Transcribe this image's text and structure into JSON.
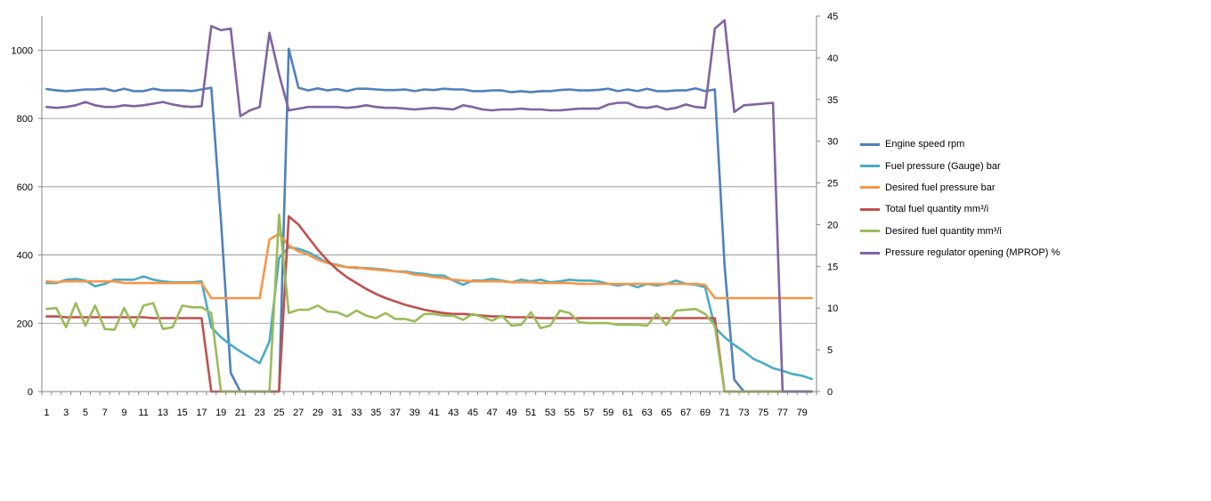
{
  "chart_data": {
    "type": "line",
    "title": "",
    "xlabel": "",
    "ylabel": "",
    "x": [
      1,
      2,
      3,
      4,
      5,
      6,
      7,
      8,
      9,
      10,
      11,
      12,
      13,
      14,
      15,
      16,
      17,
      18,
      19,
      20,
      21,
      22,
      23,
      24,
      25,
      26,
      27,
      28,
      29,
      30,
      31,
      32,
      33,
      34,
      35,
      36,
      37,
      38,
      39,
      40,
      41,
      42,
      43,
      44,
      45,
      46,
      47,
      48,
      49,
      50,
      51,
      52,
      53,
      54,
      55,
      56,
      57,
      58,
      59,
      60,
      61,
      62,
      63,
      64,
      65,
      66,
      67,
      68,
      69,
      70,
      71,
      72,
      73,
      74,
      75,
      76,
      77,
      78,
      79,
      80
    ],
    "x_tick_labels": [
      "1",
      "3",
      "5",
      "7",
      "9",
      "11",
      "13",
      "15",
      "17",
      "19",
      "21",
      "23",
      "25",
      "27",
      "29",
      "31",
      "33",
      "35",
      "37",
      "39",
      "41",
      "43",
      "45",
      "47",
      "49",
      "51",
      "53",
      "55",
      "57",
      "59",
      "61",
      "63",
      "65",
      "67",
      "69",
      "71",
      "73",
      "75",
      "77",
      "79"
    ],
    "x_tick_values": [
      1,
      3,
      5,
      7,
      9,
      11,
      13,
      15,
      17,
      19,
      21,
      23,
      25,
      27,
      29,
      31,
      33,
      35,
      37,
      39,
      41,
      43,
      45,
      47,
      49,
      51,
      53,
      55,
      57,
      59,
      61,
      63,
      65,
      67,
      69,
      71,
      73,
      75,
      77,
      79
    ],
    "y_left": {
      "ylim": [
        0,
        1100
      ],
      "ticks": [
        0,
        200,
        400,
        600,
        800,
        1000
      ]
    },
    "y_right": {
      "ylim": [
        0,
        45
      ],
      "ticks": [
        0,
        5,
        10,
        15,
        20,
        25,
        30,
        35,
        40,
        45
      ]
    },
    "grid": true,
    "legend_position": "right",
    "series": [
      {
        "name": "Engine speed rpm",
        "axis": "left",
        "color": "#4F81BD",
        "values": [
          886,
          882,
          880,
          882,
          885,
          885,
          887,
          880,
          887,
          880,
          880,
          887,
          882,
          882,
          882,
          880,
          885,
          890,
          500,
          55,
          0,
          0,
          0,
          0,
          0,
          1004,
          890,
          882,
          888,
          882,
          886,
          880,
          887,
          887,
          885,
          883,
          883,
          885,
          880,
          885,
          883,
          887,
          885,
          885,
          880,
          880,
          882,
          882,
          877,
          880,
          877,
          880,
          880,
          883,
          885,
          882,
          882,
          884,
          887,
          880,
          885,
          880,
          887,
          880,
          880,
          882,
          882,
          888,
          880,
          885,
          370,
          35,
          0,
          0,
          0,
          0,
          0,
          0,
          0,
          0
        ]
      },
      {
        "name": "Fuel pressure (Gauge)  bar",
        "axis": "right",
        "color": "#4BACC6",
        "values": [
          13.0,
          13.0,
          13.4,
          13.5,
          13.3,
          12.6,
          12.9,
          13.4,
          13.4,
          13.4,
          13.8,
          13.4,
          13.2,
          13.1,
          13.1,
          13.1,
          13.2,
          7.7,
          6.5,
          5.6,
          4.8,
          4.1,
          3.4,
          6.0,
          16.0,
          17.3,
          17.1,
          16.7,
          16.1,
          15.4,
          15.2,
          14.9,
          14.8,
          14.8,
          14.7,
          14.6,
          14.4,
          14.4,
          14.2,
          14.1,
          13.9,
          13.9,
          13.3,
          12.8,
          13.3,
          13.3,
          13.5,
          13.3,
          13.1,
          13.4,
          13.2,
          13.4,
          13.1,
          13.2,
          13.4,
          13.3,
          13.3,
          13.2,
          12.9,
          12.7,
          12.9,
          12.5,
          12.9,
          12.7,
          12.9,
          13.3,
          12.9,
          12.8,
          12.5,
          7.7,
          6.5,
          5.6,
          4.8,
          3.9,
          3.4,
          2.8,
          2.5,
          2.1,
          1.9,
          1.5
        ]
      },
      {
        "name": "Desired fuel pressure bar",
        "axis": "right",
        "color": "#F79646",
        "values": [
          13.2,
          13.1,
          13.2,
          13.2,
          13.2,
          13.2,
          13.2,
          13.2,
          13.0,
          13.0,
          13.0,
          13.0,
          13.0,
          13.0,
          13.0,
          13.0,
          13.0,
          11.2,
          11.2,
          11.2,
          11.2,
          11.2,
          11.2,
          18.2,
          18.9,
          17.5,
          16.8,
          16.4,
          15.8,
          15.4,
          15.1,
          14.9,
          14.9,
          14.7,
          14.6,
          14.5,
          14.4,
          14.3,
          14.0,
          13.9,
          13.7,
          13.6,
          13.4,
          13.3,
          13.2,
          13.2,
          13.2,
          13.2,
          13.1,
          13.1,
          13.1,
          13.0,
          13.0,
          13.0,
          13.0,
          12.9,
          12.9,
          12.9,
          12.9,
          12.9,
          12.9,
          12.9,
          12.9,
          12.9,
          12.9,
          12.9,
          12.9,
          12.9,
          12.8,
          11.2,
          11.2,
          11.2,
          11.2,
          11.2,
          11.2,
          11.2,
          11.2,
          11.2,
          11.2,
          11.2
        ]
      },
      {
        "name": "Total fuel quantity  mm³/i",
        "axis": "right",
        "color": "#C0504D",
        "values": [
          9.0,
          9.0,
          8.9,
          8.9,
          8.9,
          8.9,
          8.9,
          8.9,
          8.9,
          8.9,
          8.9,
          8.8,
          8.8,
          8.8,
          8.8,
          8.8,
          8.8,
          0,
          0,
          0,
          0,
          0,
          0,
          0,
          0,
          21.0,
          20.0,
          18.5,
          17.0,
          15.7,
          14.6,
          13.7,
          13.0,
          12.3,
          11.7,
          11.2,
          10.8,
          10.4,
          10.1,
          9.8,
          9.6,
          9.4,
          9.3,
          9.3,
          9.2,
          9.1,
          9.0,
          9.0,
          8.9,
          8.9,
          8.9,
          8.8,
          8.8,
          8.8,
          8.8,
          8.8,
          8.8,
          8.8,
          8.8,
          8.8,
          8.8,
          8.8,
          8.8,
          8.8,
          8.8,
          8.8,
          8.8,
          8.8,
          8.8,
          8.8,
          0,
          0,
          0,
          0,
          0,
          0,
          0,
          0,
          0,
          0
        ]
      },
      {
        "name": "Desired fuel quantity  mm³/i",
        "axis": "right",
        "color": "#9BBB59",
        "values": [
          9.9,
          10.0,
          7.7,
          10.6,
          7.9,
          10.3,
          7.5,
          7.4,
          10.0,
          7.7,
          10.3,
          10.6,
          7.5,
          7.7,
          10.3,
          10.1,
          10.1,
          9.4,
          0,
          0,
          0,
          0,
          0,
          0,
          21.2,
          9.4,
          9.8,
          9.8,
          10.3,
          9.6,
          9.5,
          9.0,
          9.7,
          9.1,
          8.8,
          9.4,
          8.7,
          8.7,
          8.4,
          9.3,
          9.3,
          9.1,
          9.1,
          8.6,
          9.3,
          8.9,
          8.5,
          9.1,
          7.9,
          8.0,
          9.5,
          7.6,
          7.9,
          9.7,
          9.4,
          8.3,
          8.2,
          8.2,
          8.2,
          8.0,
          8.0,
          8.0,
          7.9,
          9.3,
          8.0,
          9.7,
          9.8,
          9.9,
          9.3,
          7.9,
          0,
          0,
          0,
          0,
          0,
          0,
          0,
          0,
          0,
          0
        ]
      },
      {
        "name": "Pressure regulator opening (MPROP) %",
        "axis": "right",
        "color": "#8064A2",
        "values": [
          34.1,
          34.0,
          34.1,
          34.3,
          34.7,
          34.3,
          34.1,
          34.1,
          34.3,
          34.2,
          34.3,
          34.5,
          34.7,
          34.4,
          34.2,
          34.1,
          34.2,
          43.8,
          43.3,
          43.5,
          33.0,
          33.7,
          34.1,
          43.0,
          38.0,
          33.7,
          33.9,
          34.1,
          34.1,
          34.1,
          34.1,
          34.0,
          34.1,
          34.3,
          34.1,
          34.0,
          34.0,
          33.9,
          33.8,
          33.9,
          34.0,
          33.9,
          33.8,
          34.3,
          34.1,
          33.8,
          33.7,
          33.8,
          33.8,
          33.9,
          33.8,
          33.8,
          33.7,
          33.7,
          33.8,
          33.9,
          33.9,
          33.9,
          34.4,
          34.6,
          34.6,
          34.1,
          34.0,
          34.2,
          33.8,
          34.0,
          34.4,
          34.1,
          34.0,
          43.5,
          44.5,
          33.5,
          34.3,
          34.4,
          34.5,
          34.6,
          0,
          0,
          0,
          0
        ]
      }
    ]
  }
}
